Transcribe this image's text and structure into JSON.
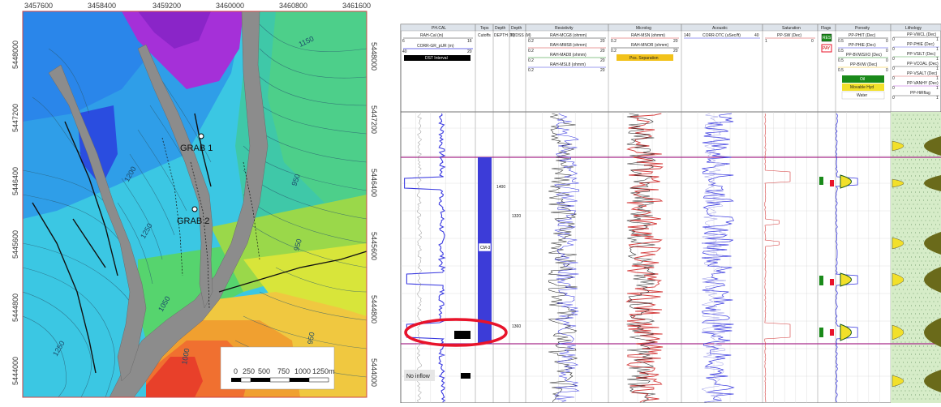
{
  "map": {
    "x_ticks": [
      "3457600",
      "3458400",
      "3459200",
      "3460000",
      "3460800",
      "3461600"
    ],
    "y_ticks_left": [
      "5448000",
      "5447200",
      "5446400",
      "5445600",
      "5444800",
      "5444000"
    ],
    "y_ticks_right": [
      "5448000",
      "5447200",
      "5446400",
      "5445600",
      "5444800",
      "5444000"
    ],
    "wells": [
      {
        "name": "GRAB 1"
      },
      {
        "name": "GRAB 2"
      }
    ],
    "contour_labels": [
      "1150",
      "1200",
      "1250",
      "1050",
      "950",
      "1000",
      "1250",
      "950",
      "950"
    ],
    "scale_bar": {
      "labels": [
        "0",
        "250",
        "500",
        "750",
        "1000",
        "1250m"
      ]
    },
    "colors": {
      "gray_fault": "#8c8c8c",
      "ocean_blue": "#2aa6e6",
      "magenta": "#a82bd6"
    }
  },
  "log": {
    "tracks": [
      {
        "title": "PH.CAL",
        "curves": [
          "RAH-Cal (in)",
          "CORR-GR_pUR (m)"
        ],
        "ranges": [
          [
            "6",
            "16"
          ],
          [
            "40",
            "20"
          ]
        ],
        "box": "DST Interval"
      },
      {
        "title": "Tops",
        "sub": "Cutoffs"
      },
      {
        "title": "Depth",
        "sub": "DEPTH (M)"
      },
      {
        "title": "Depth",
        "sub": "TVDSS (M)"
      },
      {
        "title": "Resistivity",
        "curves": [
          "RAH-MCG8 (ohmm)",
          "RAH-MMS8 (ohmm)",
          "RAH-MAD8 (ohmm)",
          "RAH-MSL8 (ohmm)"
        ],
        "ranges": [
          [
            "0.2",
            "20"
          ],
          [
            "0.2",
            "20"
          ],
          [
            "0.2",
            "20"
          ],
          [
            "0.2",
            "20"
          ]
        ]
      },
      {
        "title": "Microlog",
        "curves": [
          "RAH-MSN (ohmm)",
          "RAH-MNOR (ohmm)"
        ],
        "ranges": [
          [
            "0.2",
            "20"
          ],
          [
            "0.2",
            "20"
          ]
        ],
        "box": "Pos. Separation"
      },
      {
        "title": "Acoustic",
        "curves": [
          "CORR-DTC (uSec/ft)"
        ],
        "ranges": [
          [
            "140",
            "40"
          ]
        ]
      },
      {
        "title": "Saturation",
        "curves": [
          "PP-SW (Dec)"
        ],
        "ranges": [
          [
            "1",
            "0"
          ]
        ]
      },
      {
        "title": "Flags",
        "flags": [
          "RES",
          "PAY"
        ]
      },
      {
        "title": "Porosity",
        "curves": [
          "PP-PHIT (Dec)",
          "PP-PHIE (Dec)",
          "PP-BVWSXO (Dec)",
          "PP-BVW (Dec)"
        ],
        "ranges": [
          [
            "0.5",
            "0"
          ],
          [
            "0.5",
            "0"
          ],
          [
            "0.5",
            "0"
          ],
          [
            "0.5",
            "0"
          ]
        ],
        "legend": [
          "Oil",
          "Movable Hyd",
          "Water"
        ]
      },
      {
        "title": "Lithology",
        "curves": [
          "PP-VWCL (Dec)",
          "PP-PHIE (Dec)",
          "PP-VSILT (Dec)",
          "PP-VCOAL (Dec)",
          "PP-VSALT (Dec)",
          "PP-VANHY (Dec)",
          "PP-HiRflag"
        ],
        "ranges": [
          [
            "0",
            "1"
          ],
          [
            "0",
            "1"
          ],
          [
            "0",
            "1"
          ],
          [
            "0",
            "1"
          ],
          [
            "0",
            "1"
          ],
          [
            "0",
            "1"
          ],
          [
            "0",
            "1"
          ]
        ]
      }
    ],
    "depth_labels": [
      "1400",
      "1320",
      "1360"
    ],
    "zone_label": "CM-3",
    "no_inflow": "No inflow",
    "colors": {
      "blue_curve": "#3a3ae0",
      "red_curve": "#d43a3a",
      "zone_blue": "#3c3cd8",
      "pay_green": "#1a8a1a",
      "yellow": "#f2e02a",
      "circle": "#e8132a"
    }
  }
}
